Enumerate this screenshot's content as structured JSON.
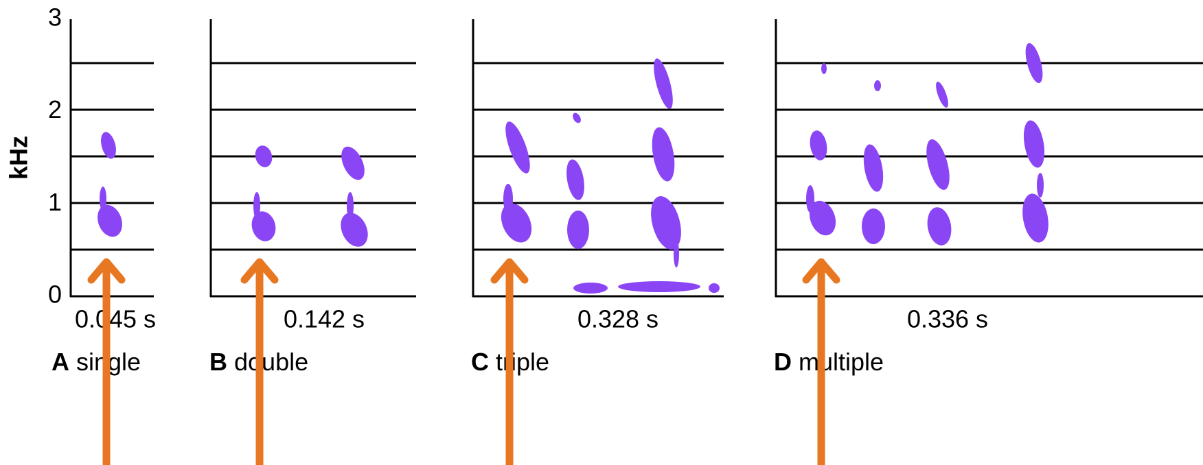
{
  "y_axis": {
    "label": "kHz",
    "ticks": [
      0,
      1,
      2,
      3
    ]
  },
  "panels": [
    {
      "duration": "0.045 s",
      "letter": "A",
      "name": "single"
    },
    {
      "duration": "0.142 s",
      "letter": "B",
      "name": "double"
    },
    {
      "duration": "0.328 s",
      "letter": "C",
      "name": "triple"
    },
    {
      "duration": "0.336 s",
      "letter": "D",
      "name": "multiple"
    }
  ]
}
